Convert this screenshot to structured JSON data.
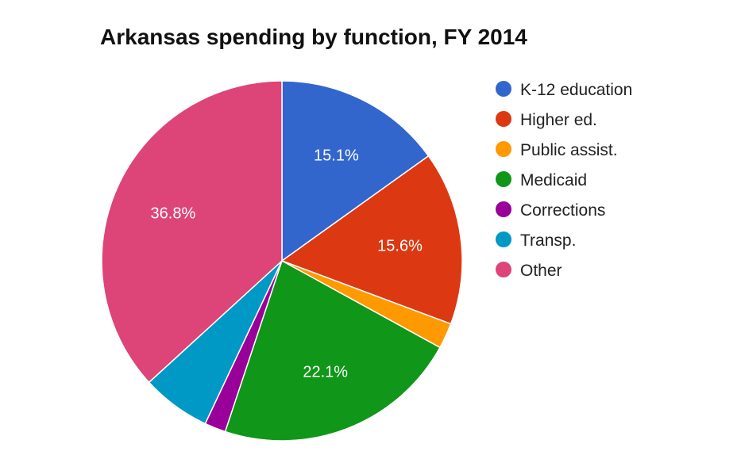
{
  "chart_data": {
    "type": "pie",
    "title": "Arkansas spending by function, FY 2014",
    "legend_position": "right",
    "start_angle_deg": 0,
    "direction": "clockwise",
    "slices": [
      {
        "label": "K-12 education",
        "value": 15.1,
        "display": "15.1%",
        "color": "#3366cc"
      },
      {
        "label": "Higher ed.",
        "value": 15.6,
        "display": "15.6%",
        "color": "#dc3912"
      },
      {
        "label": "Public assist.",
        "value": 2.3,
        "display": "",
        "color": "#ff9900"
      },
      {
        "label": "Medicaid",
        "value": 22.1,
        "display": "22.1%",
        "color": "#109618"
      },
      {
        "label": "Corrections",
        "value": 1.9,
        "display": "",
        "color": "#990099"
      },
      {
        "label": "Transp.",
        "value": 6.2,
        "display": "",
        "color": "#0099c6"
      },
      {
        "label": "Other",
        "value": 36.8,
        "display": "36.8%",
        "color": "#dd4477"
      }
    ]
  }
}
